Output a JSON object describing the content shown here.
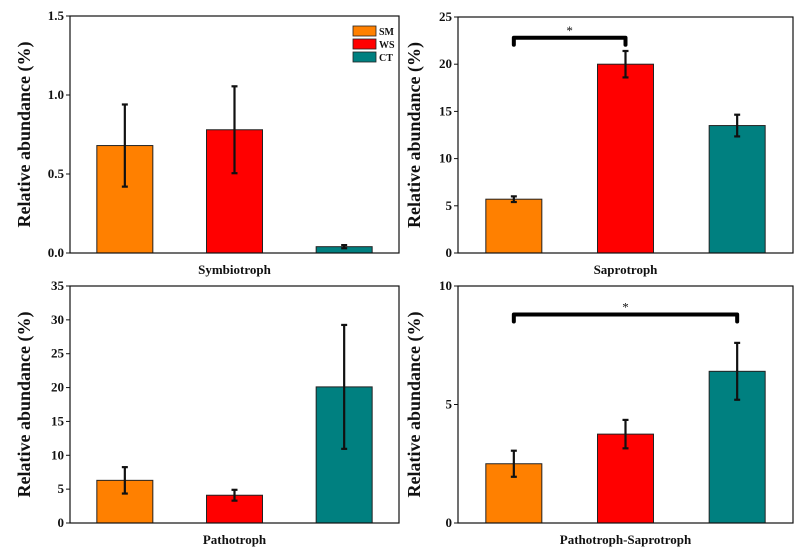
{
  "colors": {
    "SM": "#ff8000",
    "WS": "#ff0000",
    "CT": "#008080"
  },
  "legend": {
    "placement": "top-right",
    "entries": [
      "SM",
      "WS",
      "CT"
    ]
  },
  "chart_data": [
    {
      "type": "bar",
      "xlabel": "Symbiotroph",
      "ylabel": "Relative abundance (%)",
      "ylim": [
        0,
        1.5
      ],
      "yticks": [
        0.0,
        0.5,
        1.0,
        1.5
      ],
      "ytick_labels": [
        "0.0",
        "0.5",
        "1.0",
        "1.5"
      ],
      "categories": [
        "SM",
        "WS",
        "CT"
      ],
      "values": [
        0.68,
        0.78,
        0.04
      ],
      "errors": [
        0.26,
        0.275,
        0.01
      ],
      "significance": [],
      "show_legend": true
    },
    {
      "type": "bar",
      "xlabel": "Saprotroph",
      "ylabel": "Relative abundance (%)",
      "ylim": [
        0,
        25
      ],
      "yticks": [
        0,
        5,
        10,
        15,
        20,
        25
      ],
      "ytick_labels": [
        "0",
        "5",
        "10",
        "15",
        "20",
        "25"
      ],
      "categories": [
        "SM",
        "WS",
        "CT"
      ],
      "values": [
        5.7,
        20.0,
        13.5
      ],
      "errors": [
        0.3,
        1.4,
        1.15
      ],
      "significance": [
        {
          "from": "SM",
          "to": "WS",
          "label": "*",
          "level": 22.8
        }
      ],
      "show_legend": false
    },
    {
      "type": "bar",
      "xlabel": "Pathotroph",
      "ylabel": "Relative abundance (%)",
      "ylim": [
        0,
        35
      ],
      "yticks": [
        0,
        5,
        10,
        15,
        20,
        25,
        30,
        35
      ],
      "ytick_labels": [
        "0",
        "5",
        "10",
        "15",
        "20",
        "25",
        "30",
        "35"
      ],
      "categories": [
        "SM",
        "WS",
        "CT"
      ],
      "values": [
        6.3,
        4.1,
        20.1
      ],
      "errors": [
        1.95,
        0.8,
        9.15
      ],
      "significance": [],
      "show_legend": false
    },
    {
      "type": "bar",
      "xlabel": "Pathotroph-Saprotroph",
      "ylabel": "Relative abundance (%)",
      "ylim": [
        0,
        10
      ],
      "yticks": [
        0,
        5,
        10
      ],
      "ytick_labels": [
        "0",
        "5",
        "10"
      ],
      "categories": [
        "SM",
        "WS",
        "CT"
      ],
      "values": [
        2.5,
        3.75,
        6.4
      ],
      "errors": [
        0.55,
        0.6,
        1.2
      ],
      "significance": [
        {
          "from": "SM",
          "to": "CT",
          "label": "*",
          "level": 8.8
        }
      ],
      "show_legend": false
    }
  ]
}
